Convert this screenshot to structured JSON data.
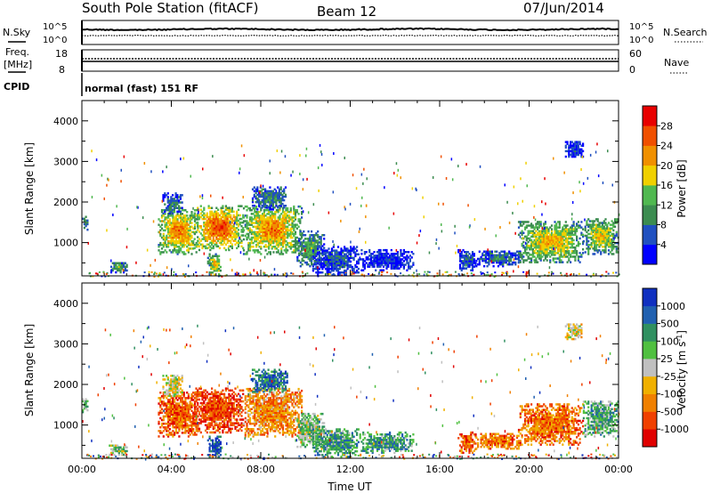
{
  "header": {
    "station": "South Pole Station (fitACF)",
    "beam": "Beam 12",
    "date": "07/Jun/2014"
  },
  "sky_panel": {
    "left_label": "N.Sky",
    "right_label": "N.Search",
    "left_ticks": [
      "10^5",
      "10^0"
    ],
    "right_ticks": [
      "10^5",
      "10^0"
    ]
  },
  "freq_panel": {
    "left_label_line1": "Freq.",
    "left_label_line2": "[MHz]",
    "right_label": "Nave",
    "left_ticks": [
      "18",
      "8"
    ],
    "right_ticks": [
      "60",
      "0"
    ]
  },
  "cpid": {
    "label": "CPID",
    "text": "normal (fast) 151 RF"
  },
  "chart_data": [
    {
      "type": "heatmap",
      "title": "",
      "quantity": "Power",
      "xlabel": "",
      "ylabel": "Slant Range [km]",
      "xlim": [
        0,
        24
      ],
      "ylim": [
        180,
        4500
      ],
      "y_ticks": [
        "1000",
        "2000",
        "3000",
        "4000"
      ],
      "colorbar_label": "Power [dB]",
      "colorbar_ticks": [
        "28",
        "24",
        "20",
        "16",
        "12",
        "8",
        "4"
      ],
      "colors": [
        "#0000ff",
        "#2050c0",
        "#3c8c50",
        "#50b850",
        "#f0d000",
        "#f09000",
        "#f05000",
        "#e80000"
      ],
      "echo_regions": [
        {
          "t0": 0.0,
          "t1": 0.25,
          "r0": 1300,
          "r1": 1650,
          "level": 0.3
        },
        {
          "t0": 1.2,
          "t1": 2.0,
          "r0": 250,
          "r1": 500,
          "level": 0.4
        },
        {
          "t0": 3.4,
          "t1": 5.2,
          "r0": 700,
          "r1": 1800,
          "level": 0.7
        },
        {
          "t0": 3.6,
          "t1": 4.5,
          "r0": 1700,
          "r1": 2200,
          "level": 0.25
        },
        {
          "t0": 5.0,
          "t1": 7.2,
          "r0": 800,
          "r1": 1900,
          "level": 0.8
        },
        {
          "t0": 5.6,
          "t1": 6.2,
          "r0": 200,
          "r1": 700,
          "level": 0.6
        },
        {
          "t0": 7.2,
          "t1": 9.8,
          "r0": 700,
          "r1": 1900,
          "level": 0.7
        },
        {
          "t0": 7.6,
          "t1": 9.2,
          "r0": 1800,
          "r1": 2350,
          "level": 0.3
        },
        {
          "t0": 9.6,
          "t1": 10.8,
          "r0": 400,
          "r1": 1300,
          "level": 0.4
        },
        {
          "t0": 10.3,
          "t1": 12.4,
          "r0": 200,
          "r1": 900,
          "level": 0.2
        },
        {
          "t0": 12.4,
          "t1": 14.8,
          "r0": 300,
          "r1": 800,
          "level": 0.15
        },
        {
          "t0": 16.8,
          "t1": 17.6,
          "r0": 300,
          "r1": 800,
          "level": 0.2
        },
        {
          "t0": 17.6,
          "t1": 19.6,
          "r0": 400,
          "r1": 800,
          "level": 0.25
        },
        {
          "t0": 19.5,
          "t1": 22.4,
          "r0": 500,
          "r1": 1500,
          "level": 0.6
        },
        {
          "t0": 22.4,
          "t1": 24.0,
          "r0": 700,
          "r1": 1600,
          "level": 0.55
        },
        {
          "t0": 21.6,
          "t1": 22.4,
          "r0": 3100,
          "r1": 3500,
          "level": 0.15
        }
      ]
    },
    {
      "type": "heatmap",
      "title": "",
      "quantity": "Velocity",
      "xlabel": "Time UT",
      "ylabel": "Slant Range [km]",
      "xlim": [
        0,
        24
      ],
      "ylim": [
        180,
        4500
      ],
      "x_ticks": [
        "00:00",
        "04:00",
        "08:00",
        "12:00",
        "16:00",
        "20:00",
        "00:00"
      ],
      "y_ticks": [
        "1000",
        "2000",
        "3000",
        "4000"
      ],
      "colorbar_label": "Velocity [m s",
      "colorbar_label_sup": "-1",
      "colorbar_label_end": "]",
      "colorbar_ticks": [
        "1000",
        "500",
        "100",
        "25",
        "-25",
        "-100",
        "-500",
        "-1000"
      ],
      "colors": [
        "#e00000",
        "#f04000",
        "#f08000",
        "#f0b000",
        "#c0c0c0",
        "#50c040",
        "#309060",
        "#2060b0",
        "#1030c0"
      ],
      "echo_regions": [
        {
          "t0": 0.0,
          "t1": 0.25,
          "r0": 1300,
          "r1": 1650,
          "level": 0.6
        },
        {
          "t0": 1.2,
          "t1": 2.0,
          "r0": 250,
          "r1": 500,
          "level": 0.55
        },
        {
          "t0": 3.4,
          "t1": 5.2,
          "r0": 700,
          "r1": 1800,
          "level": 0.2
        },
        {
          "t0": 3.6,
          "t1": 4.5,
          "r0": 1700,
          "r1": 2200,
          "level": 0.5
        },
        {
          "t0": 5.0,
          "t1": 7.2,
          "r0": 800,
          "r1": 1900,
          "level": 0.15
        },
        {
          "t0": 5.6,
          "t1": 6.2,
          "r0": 200,
          "r1": 700,
          "level": 0.9
        },
        {
          "t0": 7.2,
          "t1": 9.8,
          "r0": 700,
          "r1": 1900,
          "level": 0.3
        },
        {
          "t0": 7.6,
          "t1": 9.2,
          "r0": 1800,
          "r1": 2350,
          "level": 0.8
        },
        {
          "t0": 9.6,
          "t1": 10.8,
          "r0": 400,
          "r1": 1300,
          "level": 0.6
        },
        {
          "t0": 10.3,
          "t1": 12.4,
          "r0": 200,
          "r1": 900,
          "level": 0.7
        },
        {
          "t0": 12.4,
          "t1": 14.8,
          "r0": 300,
          "r1": 800,
          "level": 0.7
        },
        {
          "t0": 16.8,
          "t1": 17.6,
          "r0": 300,
          "r1": 800,
          "level": 0.2
        },
        {
          "t0": 17.6,
          "t1": 19.6,
          "r0": 400,
          "r1": 800,
          "level": 0.25
        },
        {
          "t0": 19.5,
          "t1": 22.4,
          "r0": 500,
          "r1": 1500,
          "level": 0.25
        },
        {
          "t0": 22.4,
          "t1": 24.0,
          "r0": 700,
          "r1": 1600,
          "level": 0.65
        },
        {
          "t0": 21.6,
          "t1": 22.4,
          "r0": 3100,
          "r1": 3500,
          "level": 0.45
        }
      ]
    }
  ]
}
